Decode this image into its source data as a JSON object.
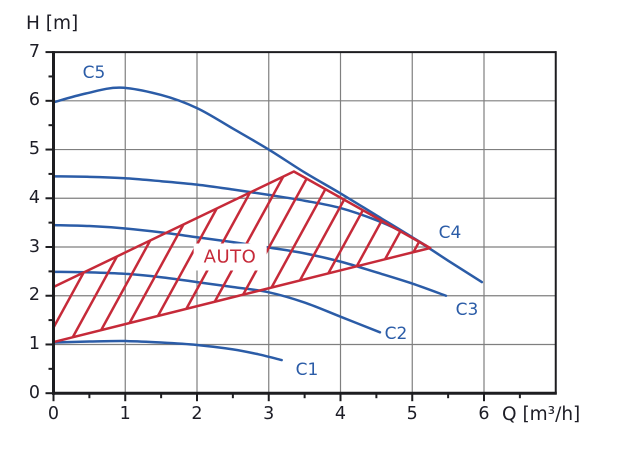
{
  "labels": {
    "y_axis_title": "H [m]",
    "x_axis_title": "Q [m³/h]",
    "auto": "AUTO",
    "c1": "C1",
    "c2": "C2",
    "c3": "C3",
    "c4": "C4",
    "c5": "C5"
  },
  "colors": {
    "curve_blue": "#2b5ca7",
    "auto_red": "#c62a39",
    "grid_gray": "#7f7f7f",
    "axis_black": "#1d1d20",
    "background": "#ffffff"
  },
  "chart_data": {
    "type": "line",
    "title": "",
    "ylabel": "H [m]",
    "xlabel": "Q [m³/h]",
    "xlim": [
      0,
      7
    ],
    "ylim": [
      0,
      7
    ],
    "x_tick_labels": [
      "0",
      "1",
      "2",
      "3",
      "4",
      "5",
      "6"
    ],
    "y_tick_labels": [
      "0",
      "1",
      "2",
      "3",
      "4",
      "5",
      "6",
      "7"
    ],
    "minor_tick_step": 0.5,
    "grid": true,
    "legend_position": "inline-labels-on-curves",
    "series": [
      {
        "name": "C1",
        "color": "#2b5ca7",
        "points": [
          [
            0,
            1.04
          ],
          [
            0.5,
            1.06
          ],
          [
            1,
            1.07
          ],
          [
            1.5,
            1.04
          ],
          [
            2,
            0.99
          ],
          [
            2.5,
            0.9
          ],
          [
            2.85,
            0.8
          ],
          [
            3.18,
            0.68
          ]
        ]
      },
      {
        "name": "C2",
        "color": "#2b5ca7",
        "points": [
          [
            0,
            2.49
          ],
          [
            0.5,
            2.48
          ],
          [
            1,
            2.45
          ],
          [
            1.5,
            2.38
          ],
          [
            2,
            2.28
          ],
          [
            2.5,
            2.18
          ],
          [
            3,
            2.07
          ],
          [
            3.5,
            1.86
          ],
          [
            4,
            1.57
          ],
          [
            4.55,
            1.25
          ]
        ]
      },
      {
        "name": "C3",
        "color": "#2b5ca7",
        "points": [
          [
            0,
            3.45
          ],
          [
            0.5,
            3.43
          ],
          [
            1,
            3.38
          ],
          [
            1.5,
            3.3
          ],
          [
            2,
            3.2
          ],
          [
            2.5,
            3.1
          ],
          [
            3,
            2.99
          ],
          [
            3.5,
            2.87
          ],
          [
            4,
            2.7
          ],
          [
            4.5,
            2.48
          ],
          [
            5,
            2.25
          ],
          [
            5.47,
            2.0
          ]
        ]
      },
      {
        "name": "C4",
        "color": "#2b5ca7",
        "points": [
          [
            0,
            4.45
          ],
          [
            0.5,
            4.44
          ],
          [
            1,
            4.41
          ],
          [
            1.5,
            4.35
          ],
          [
            2,
            4.28
          ],
          [
            2.5,
            4.18
          ],
          [
            3,
            4.07
          ],
          [
            3.5,
            3.95
          ],
          [
            4,
            3.8
          ],
          [
            4.5,
            3.55
          ],
          [
            4.9,
            3.28
          ],
          [
            5.2,
            3.02
          ]
        ]
      },
      {
        "name": "C5",
        "color": "#2b5ca7",
        "points": [
          [
            0,
            5.97
          ],
          [
            0.45,
            6.15
          ],
          [
            0.93,
            6.27
          ],
          [
            1.5,
            6.12
          ],
          [
            2,
            5.85
          ],
          [
            2.5,
            5.43
          ],
          [
            3,
            5.0
          ],
          [
            3.5,
            4.53
          ],
          [
            4,
            4.1
          ],
          [
            4.5,
            3.65
          ],
          [
            5,
            3.2
          ],
          [
            5.5,
            2.72
          ],
          [
            5.97,
            2.28
          ]
        ]
      }
    ],
    "auto_region": {
      "label": "AUTO",
      "color": "#c62a39",
      "polygon": [
        [
          0,
          1.05
        ],
        [
          0,
          2.18
        ],
        [
          3.35,
          4.55
        ],
        [
          5.25,
          2.98
        ]
      ],
      "hatch_angle_deg": 61.3,
      "hatch_spacing_px": 21.5
    }
  }
}
